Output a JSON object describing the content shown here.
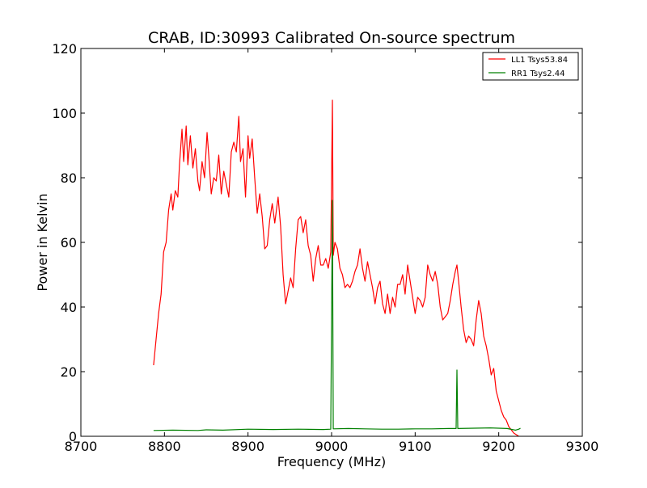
{
  "chart_data": {
    "type": "line",
    "title": "CRAB, ID:30993 Calibrated On-source spectrum",
    "xlabel": "Frequency (MHz)",
    "ylabel": "Power in Kelvin",
    "xlim": [
      8700,
      9300
    ],
    "ylim": [
      0,
      120
    ],
    "x_ticks": [
      "8700",
      "8800",
      "8900",
      "9000",
      "9100",
      "9200",
      "9300"
    ],
    "y_ticks": [
      "0",
      "20",
      "40",
      "60",
      "80",
      "100",
      "120"
    ],
    "grid": false,
    "legend_position": "top-right",
    "series": [
      {
        "name": "LL1 Tsys53.84",
        "color": "#ff0000",
        "points": [
          [
            8787,
            22
          ],
          [
            8790,
            30
          ],
          [
            8793,
            38
          ],
          [
            8796,
            44
          ],
          [
            8799,
            57
          ],
          [
            8802,
            60
          ],
          [
            8805,
            70
          ],
          [
            8808,
            75
          ],
          [
            8810,
            70
          ],
          [
            8813,
            76
          ],
          [
            8816,
            74
          ],
          [
            8818,
            84
          ],
          [
            8821,
            95
          ],
          [
            8823,
            85
          ],
          [
            8826,
            96
          ],
          [
            8828,
            84
          ],
          [
            8831,
            93
          ],
          [
            8834,
            83
          ],
          [
            8837,
            89
          ],
          [
            8840,
            79
          ],
          [
            8842,
            76
          ],
          [
            8845,
            85
          ],
          [
            8848,
            80
          ],
          [
            8851,
            94
          ],
          [
            8853,
            87
          ],
          [
            8856,
            75
          ],
          [
            8859,
            80
          ],
          [
            8862,
            79
          ],
          [
            8865,
            87
          ],
          [
            8868,
            75
          ],
          [
            8871,
            82
          ],
          [
            8874,
            78
          ],
          [
            8877,
            74
          ],
          [
            8880,
            88
          ],
          [
            8883,
            91
          ],
          [
            8886,
            88
          ],
          [
            8889,
            99
          ],
          [
            8891,
            85
          ],
          [
            8894,
            89
          ],
          [
            8897,
            74
          ],
          [
            8900,
            93
          ],
          [
            8902,
            86
          ],
          [
            8905,
            92
          ],
          [
            8908,
            80
          ],
          [
            8911,
            69
          ],
          [
            8914,
            75
          ],
          [
            8917,
            68
          ],
          [
            8920,
            58
          ],
          [
            8923,
            59
          ],
          [
            8926,
            67
          ],
          [
            8929,
            72
          ],
          [
            8932,
            66
          ],
          [
            8936,
            74
          ],
          [
            8939,
            65
          ],
          [
            8942,
            50
          ],
          [
            8945,
            41
          ],
          [
            8948,
            45
          ],
          [
            8951,
            49
          ],
          [
            8954,
            46
          ],
          [
            8957,
            58
          ],
          [
            8960,
            67
          ],
          [
            8963,
            68
          ],
          [
            8966,
            63
          ],
          [
            8969,
            67
          ],
          [
            8972,
            59
          ],
          [
            8975,
            56
          ],
          [
            8978,
            48
          ],
          [
            8981,
            55
          ],
          [
            8984,
            59
          ],
          [
            8987,
            53
          ],
          [
            8990,
            53
          ],
          [
            8993,
            55
          ],
          [
            8996,
            52
          ],
          [
            8999,
            57
          ],
          [
            9001,
            104
          ],
          [
            9002,
            56
          ],
          [
            9004,
            60
          ],
          [
            9007,
            58
          ],
          [
            9010,
            52
          ],
          [
            9013,
            50
          ],
          [
            9016,
            46
          ],
          [
            9019,
            47
          ],
          [
            9022,
            46
          ],
          [
            9025,
            48
          ],
          [
            9028,
            51
          ],
          [
            9031,
            53
          ],
          [
            9034,
            58
          ],
          [
            9037,
            52
          ],
          [
            9040,
            48
          ],
          [
            9043,
            54
          ],
          [
            9046,
            50
          ],
          [
            9049,
            46
          ],
          [
            9052,
            41
          ],
          [
            9055,
            46
          ],
          [
            9058,
            48
          ],
          [
            9061,
            41
          ],
          [
            9064,
            38
          ],
          [
            9067,
            44
          ],
          [
            9070,
            38
          ],
          [
            9073,
            43
          ],
          [
            9076,
            40
          ],
          [
            9079,
            47
          ],
          [
            9082,
            47
          ],
          [
            9085,
            50
          ],
          [
            9088,
            44
          ],
          [
            9091,
            53
          ],
          [
            9094,
            48
          ],
          [
            9097,
            43
          ],
          [
            9100,
            38
          ],
          [
            9103,
            43
          ],
          [
            9106,
            42
          ],
          [
            9109,
            40
          ],
          [
            9112,
            43
          ],
          [
            9115,
            53
          ],
          [
            9118,
            50
          ],
          [
            9121,
            48
          ],
          [
            9124,
            51
          ],
          [
            9127,
            47
          ],
          [
            9130,
            40
          ],
          [
            9133,
            36
          ],
          [
            9136,
            37
          ],
          [
            9139,
            38
          ],
          [
            9142,
            42
          ],
          [
            9145,
            47
          ],
          [
            9148,
            51
          ],
          [
            9150,
            53
          ],
          [
            9152,
            48
          ],
          [
            9155,
            40
          ],
          [
            9158,
            33
          ],
          [
            9161,
            29
          ],
          [
            9164,
            31
          ],
          [
            9167,
            30
          ],
          [
            9170,
            28
          ],
          [
            9173,
            36
          ],
          [
            9176,
            42
          ],
          [
            9179,
            38
          ],
          [
            9182,
            31
          ],
          [
            9185,
            28
          ],
          [
            9188,
            24
          ],
          [
            9191,
            19
          ],
          [
            9194,
            21
          ],
          [
            9197,
            14
          ],
          [
            9200,
            11
          ],
          [
            9203,
            8
          ],
          [
            9206,
            6
          ],
          [
            9209,
            5
          ],
          [
            9212,
            3
          ],
          [
            9215,
            2
          ],
          [
            9218,
            1
          ],
          [
            9221,
            0.5
          ],
          [
            9224,
            0
          ]
        ]
      },
      {
        "name": "RR1 Tsys2.44",
        "color": "#008000",
        "points": [
          [
            8787,
            1.8
          ],
          [
            8810,
            1.9
          ],
          [
            8840,
            1.8
          ],
          [
            8850,
            2.0
          ],
          [
            8870,
            1.9
          ],
          [
            8900,
            2.2
          ],
          [
            8930,
            2.1
          ],
          [
            8960,
            2.2
          ],
          [
            8990,
            2.1
          ],
          [
            8999,
            2.2
          ],
          [
            9001,
            73
          ],
          [
            9002,
            2.3
          ],
          [
            9020,
            2.4
          ],
          [
            9040,
            2.3
          ],
          [
            9060,
            2.2
          ],
          [
            9080,
            2.2
          ],
          [
            9100,
            2.3
          ],
          [
            9120,
            2.3
          ],
          [
            9140,
            2.4
          ],
          [
            9149,
            2.4
          ],
          [
            9150,
            20.5
          ],
          [
            9151,
            2.4
          ],
          [
            9170,
            2.5
          ],
          [
            9190,
            2.6
          ],
          [
            9210,
            2.4
          ],
          [
            9220,
            1.9
          ],
          [
            9224,
            2.2
          ],
          [
            9226,
            2.5
          ]
        ]
      }
    ]
  }
}
